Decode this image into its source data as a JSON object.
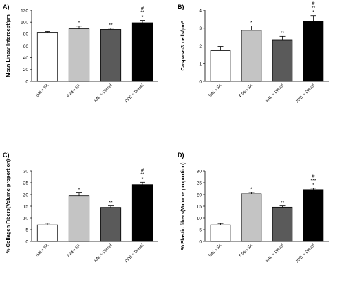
{
  "figure": {
    "background": "#ffffff"
  },
  "chart_data": [
    {
      "panel": "A)",
      "type": "bar",
      "ylabel": "Mean Linear Intercept/µm",
      "ylim": [
        0,
        120
      ],
      "yticks": [
        0,
        20,
        40,
        60,
        80,
        100,
        120
      ],
      "categories": [
        "SAL+ FA",
        "PPE+ FA",
        "SAL + Diesel",
        "PPE + Diesel"
      ],
      "values": [
        82,
        89,
        88,
        99
      ],
      "errors": [
        2.5,
        4.5,
        2,
        4
      ],
      "significance": [
        [],
        [
          "*"
        ],
        [
          "**"
        ],
        [
          "#",
          "**",
          "*"
        ]
      ],
      "colors": [
        "#ffffff",
        "#c4c4c4",
        "#5a5a5a",
        "#000000"
      ]
    },
    {
      "panel": "B)",
      "type": "bar",
      "ylabel": "Caspase-3 cells/µm²",
      "ylim": [
        0,
        4
      ],
      "yticks": [
        0,
        1,
        2,
        3,
        4
      ],
      "categories": [
        "SAL+ FA",
        "PPE+ FA",
        "SAL + Diesel",
        "PPE + Diesel"
      ],
      "values": [
        1.73,
        2.88,
        2.33,
        3.4
      ],
      "errors": [
        0.23,
        0.25,
        0.22,
        0.3
      ],
      "significance": [
        [],
        [
          "*"
        ],
        [
          "**"
        ],
        [
          "#",
          "**",
          "*"
        ]
      ],
      "colors": [
        "#ffffff",
        "#c4c4c4",
        "#5a5a5a",
        "#000000"
      ]
    },
    {
      "panel": "C)",
      "type": "bar",
      "ylabel": "% Collagen Fibers(Volume proportion)",
      "ylim": [
        0,
        30
      ],
      "yticks": [
        0,
        5,
        10,
        15,
        20,
        25,
        30
      ],
      "categories": [
        "SAL+ FA",
        "PPE+ FA",
        "SAL + Diesel",
        "PPE + Diesel"
      ],
      "values": [
        7,
        19.5,
        14.5,
        24.2
      ],
      "errors": [
        0.7,
        1.2,
        0.6,
        1.0
      ],
      "significance": [
        [],
        [
          "*"
        ],
        [
          "**"
        ],
        [
          "#",
          "**",
          "*"
        ]
      ],
      "colors": [
        "#ffffff",
        "#c4c4c4",
        "#5a5a5a",
        "#000000"
      ]
    },
    {
      "panel": "D)",
      "type": "bar",
      "ylabel": "% Elastic fibers(Volume proportion)",
      "ylim": [
        0,
        30
      ],
      "yticks": [
        0,
        5,
        10,
        15,
        20,
        25,
        30
      ],
      "categories": [
        "SAL+ FA",
        "PPE+ FA",
        "SAL + Diesel",
        "PPE + Diesel"
      ],
      "values": [
        7,
        20.3,
        14.6,
        22.1
      ],
      "errors": [
        0.6,
        0.6,
        0.5,
        0.6
      ],
      "significance": [
        [],
        [
          "*"
        ],
        [
          "**"
        ],
        [
          "#",
          "***",
          "*"
        ]
      ],
      "colors": [
        "#ffffff",
        "#c4c4c4",
        "#5a5a5a",
        "#000000"
      ]
    }
  ]
}
